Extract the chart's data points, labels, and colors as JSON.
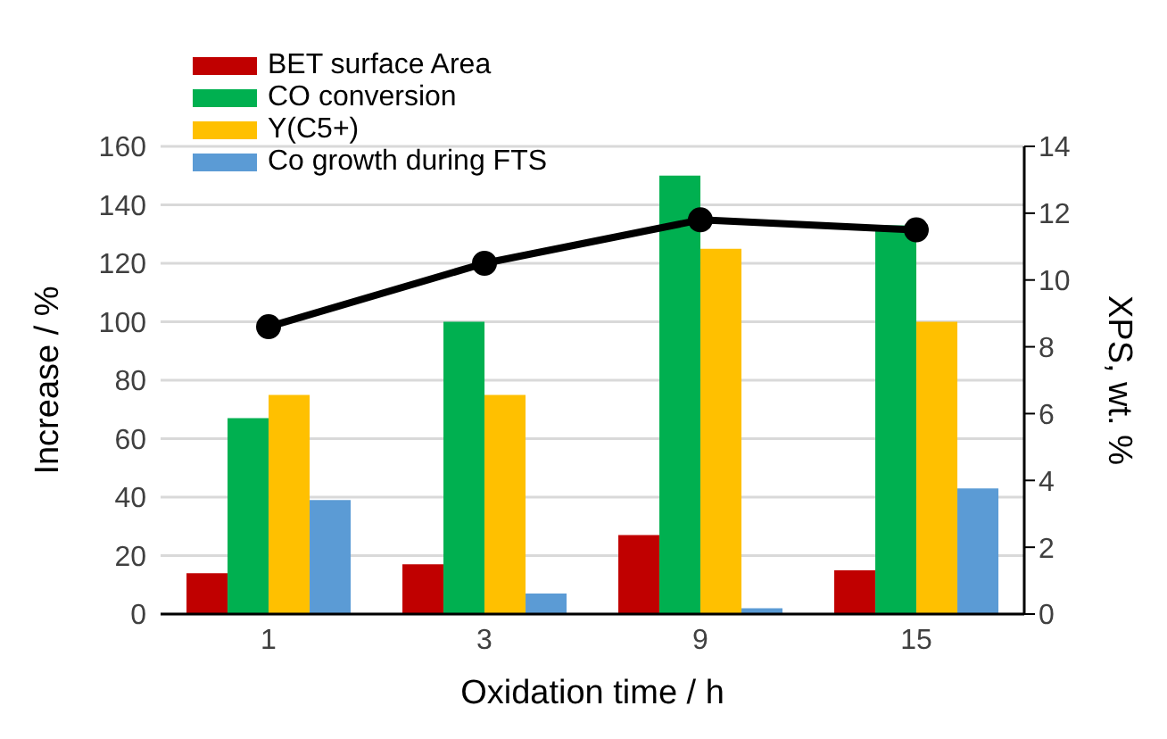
{
  "chart_data": {
    "type": "bar",
    "xlabel": "Oxidation time / h",
    "ylabel": "Increase / %",
    "y2label": "XPS, wt. %",
    "categories": [
      "1",
      "3",
      "9",
      "15"
    ],
    "series": [
      {
        "name": "BET surface Area",
        "color": "#c00000",
        "values": [
          14,
          17,
          27,
          15
        ]
      },
      {
        "name": "CO conversion",
        "color": "#00b050",
        "values": [
          67,
          100,
          150,
          133
        ]
      },
      {
        "name": "Y(C5+)",
        "color": "#ffc000",
        "values": [
          75,
          75,
          125,
          100
        ]
      },
      {
        "name": "Co growth during FTS",
        "color": "#5b9bd5",
        "values": [
          39,
          7,
          2,
          43
        ]
      },
      {
        "type": "line",
        "axis": "y2",
        "color": "#000000",
        "values": [
          8.6,
          10.5,
          11.8,
          11.5
        ]
      }
    ],
    "ylim": [
      0,
      160
    ],
    "yticks": [
      0,
      20,
      40,
      60,
      80,
      100,
      120,
      140,
      160
    ],
    "y2lim": [
      0,
      14
    ],
    "y2ticks": [
      0,
      2,
      4,
      6,
      8,
      10,
      12,
      14
    ],
    "grid": "y",
    "legend": "top left",
    "marker": "circle",
    "line_style": "solid"
  }
}
